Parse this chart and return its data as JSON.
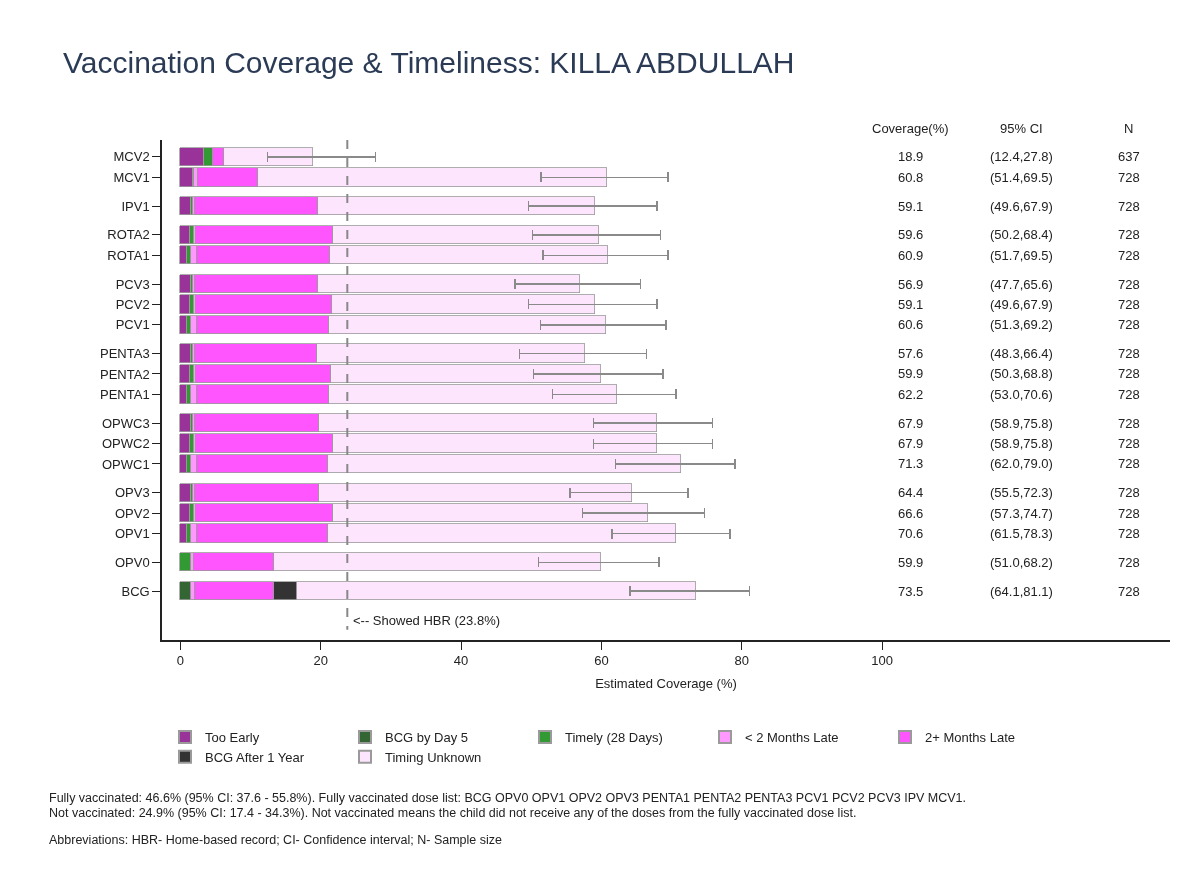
{
  "chart_data": {
    "type": "bar",
    "orientation": "horizontal",
    "stacked": true,
    "title": "Vaccination Coverage & Timeliness: KILLA ABDULLAH",
    "xlabel": "Estimated Coverage (%)",
    "categories": [
      "MCV2",
      "MCV1",
      null,
      "IPV1",
      null,
      "ROTA2",
      "ROTA1",
      null,
      "PCV3",
      "PCV2",
      "PCV1",
      null,
      "PENTA3",
      "PENTA2",
      "PENTA1",
      null,
      "OPWC3",
      "OPWC2",
      "OPWC1",
      null,
      "OPV3",
      "OPV2",
      "OPV1",
      null,
      "OPV0",
      null,
      "BCG"
    ],
    "series": [
      {
        "name": "Too Early",
        "color": "#993399",
        "values": [
          3.4,
          1.8,
          null,
          1.6,
          null,
          1.4,
          1.0,
          null,
          1.6,
          1.4,
          1.0,
          null,
          1.6,
          1.4,
          1.0,
          null,
          1.6,
          1.4,
          1.0,
          null,
          1.6,
          1.4,
          1.0,
          null,
          null,
          null,
          null
        ]
      },
      {
        "name": "BCG by Day 5",
        "color": "#336633",
        "values": [
          null,
          null,
          null,
          null,
          null,
          null,
          null,
          null,
          null,
          null,
          null,
          null,
          null,
          null,
          null,
          null,
          null,
          null,
          null,
          null,
          null,
          null,
          null,
          null,
          null,
          null,
          1.5
        ]
      },
      {
        "name": "Timely (28 Days)",
        "color": "#339933",
        "values": [
          1.3,
          0.2,
          null,
          0.2,
          null,
          0.6,
          0.6,
          null,
          0.2,
          0.6,
          0.6,
          null,
          0.2,
          0.6,
          0.6,
          null,
          0.2,
          0.6,
          0.6,
          null,
          0.2,
          0.6,
          0.6,
          null,
          1.6,
          null,
          null
        ]
      },
      {
        "name": "< 2 Months Late",
        "color": "#ff99ff",
        "values": [
          null,
          0.5,
          null,
          0.3,
          null,
          0.3,
          0.8,
          null,
          0.3,
          0.3,
          0.8,
          null,
          0.3,
          0.3,
          0.8,
          null,
          0.3,
          0.3,
          0.8,
          null,
          0.3,
          0.3,
          0.8,
          null,
          0.4,
          null,
          0.6
        ]
      },
      {
        "name": "2+ Months Late",
        "color": "#ff55ff",
        "values": [
          1.5,
          8.6,
          null,
          17.5,
          null,
          19.4,
          18.9,
          null,
          17.5,
          19.3,
          18.8,
          null,
          17.4,
          19.2,
          18.8,
          null,
          17.6,
          19.4,
          18.6,
          null,
          17.6,
          19.4,
          18.6,
          null,
          11.4,
          null,
          11.3
        ]
      },
      {
        "name": "BCG After 1 Year",
        "color": "#333333",
        "values": [
          null,
          null,
          null,
          null,
          null,
          null,
          null,
          null,
          null,
          null,
          null,
          null,
          null,
          null,
          null,
          null,
          null,
          null,
          null,
          null,
          null,
          null,
          null,
          null,
          null,
          null,
          3.3
        ]
      },
      {
        "name": "Timing Unknown",
        "color": "#fde6fd",
        "values": [
          12.7,
          49.7,
          null,
          39.5,
          null,
          37.9,
          39.6,
          null,
          37.3,
          37.5,
          39.4,
          null,
          38.1,
          38.4,
          41.0,
          null,
          48.2,
          46.2,
          50.3,
          null,
          44.7,
          44.9,
          49.6,
          null,
          46.5,
          null,
          56.8
        ],
        "errors": [
          [
            12.4,
            27.8
          ],
          [
            51.4,
            69.5
          ],
          null,
          [
            49.6,
            67.9
          ],
          null,
          [
            50.2,
            68.4
          ],
          [
            51.7,
            69.5
          ],
          null,
          [
            47.7,
            65.6
          ],
          [
            49.6,
            67.9
          ],
          [
            51.3,
            69.2
          ],
          null,
          [
            48.3,
            66.4
          ],
          [
            50.3,
            68.8
          ],
          [
            53.0,
            70.6
          ],
          null,
          [
            58.9,
            75.8
          ],
          [
            58.9,
            75.8
          ],
          [
            62.0,
            79.0
          ],
          null,
          [
            55.5,
            72.3
          ],
          [
            57.3,
            74.7
          ],
          [
            61.5,
            78.3
          ],
          null,
          [
            51.0,
            68.2
          ],
          null,
          [
            64.1,
            81.1
          ]
        ]
      }
    ],
    "xlim": [
      -2.6,
      141
    ],
    "xticks": [
      0,
      20,
      40,
      60,
      80,
      100
    ],
    "ref_lines": [
      {
        "axis": "x",
        "value": 23.8,
        "label": "<-- Showed HBR (23.8%)",
        "color": "#888888",
        "line_style": "dashed"
      }
    ],
    "annotations": [
      "Coverage(%)",
      "95% CI",
      "N",
      "18.9",
      "(12.4,27.8)",
      "637",
      "60.8",
      "(51.4,69.5)",
      "728",
      "59.1",
      "(49.6,67.9)",
      "728",
      "59.6",
      "(50.2,68.4)",
      "728",
      "60.9",
      "(51.7,69.5)",
      "728",
      "56.9",
      "(47.7,65.6)",
      "728",
      "59.1",
      "(49.6,67.9)",
      "728",
      "60.6",
      "(51.3,69.2)",
      "728",
      "57.6",
      "(48.3,66.4)",
      "728",
      "59.9",
      "(50.3,68.8)",
      "728",
      "62.2",
      "(53.0,70.6)",
      "728",
      "67.9",
      "(58.9,75.8)",
      "728",
      "67.9",
      "(58.9,75.8)",
      "728",
      "71.3",
      "(62.0,79.0)",
      "728",
      "64.4",
      "(55.5,72.3)",
      "728",
      "66.6",
      "(57.3,74.7)",
      "728",
      "70.6",
      "(61.5,78.3)",
      "728",
      "59.9",
      "(51.0,68.2)",
      "728",
      "73.5",
      "(64.1,81.1)",
      "728",
      "Fully vaccinated: 46.6% (95% CI: 37.6 - 55.8%). Fully vaccinated dose list: BCG OPV0 OPV1 OPV2 OPV3 PENTA1 PENTA2 PENTA3 PCV1 PCV2 PCV3 IPV MCV1.",
      "Not vaccinated: 24.9% (95% CI: 17.4 - 34.3%). Not vaccinated means the child did not receive any of the doses from the fully vaccinated dose list.",
      "Abbreviations: HBR- Home-based record; CI- Confidence interval; N- Sample size"
    ],
    "legend": "bottom"
  }
}
